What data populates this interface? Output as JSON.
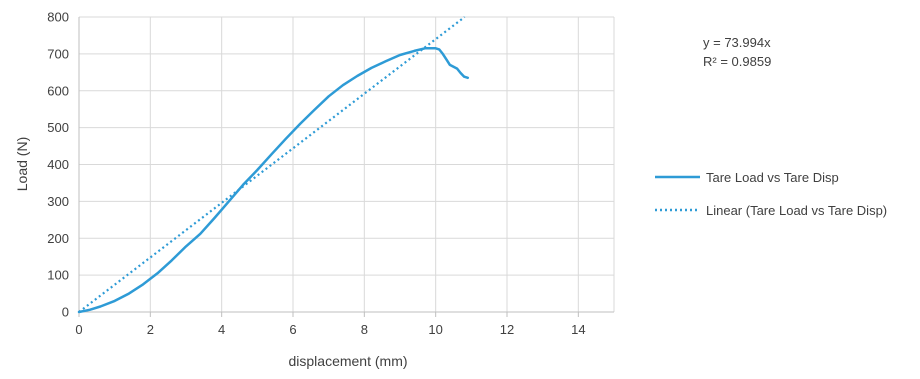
{
  "chart_data": {
    "type": "scatter",
    "title": "",
    "xlabel": "displacement (mm)",
    "ylabel": "Load (N)",
    "xlim": [
      0,
      15
    ],
    "ylim": [
      0,
      800
    ],
    "xticks": [
      0,
      2,
      4,
      6,
      8,
      10,
      12,
      14
    ],
    "yticks": [
      0,
      100,
      200,
      300,
      400,
      500,
      600,
      700,
      800
    ],
    "grid": true,
    "legend_position": "right",
    "series": [
      {
        "name": "Tare Load vs Tare Disp",
        "style": "solid",
        "color": "#2e9bd6",
        "x": [
          0,
          0.3,
          0.6,
          1.0,
          1.4,
          1.8,
          2.2,
          2.6,
          3.0,
          3.4,
          3.8,
          4.2,
          4.6,
          5.0,
          5.4,
          5.8,
          6.2,
          6.6,
          7.0,
          7.4,
          7.8,
          8.2,
          8.6,
          9.0,
          9.4,
          9.7,
          10.0,
          10.1,
          10.2,
          10.3,
          10.4,
          10.6,
          10.7,
          10.8,
          10.9
        ],
        "y": [
          0,
          6,
          15,
          30,
          50,
          75,
          105,
          140,
          178,
          212,
          255,
          300,
          345,
          385,
          428,
          470,
          510,
          548,
          585,
          615,
          640,
          662,
          680,
          697,
          708,
          715,
          715,
          712,
          700,
          685,
          670,
          660,
          648,
          638,
          635
        ]
      },
      {
        "name": "Linear (Tare Load vs Tare Disp)",
        "style": "dotted",
        "color": "#2e9bd6",
        "trendline": {
          "slope": 73.994,
          "intercept": 0
        }
      }
    ],
    "annotations": {
      "equation": "y = 73.994x",
      "r_squared": "R² = 0.9859"
    }
  }
}
